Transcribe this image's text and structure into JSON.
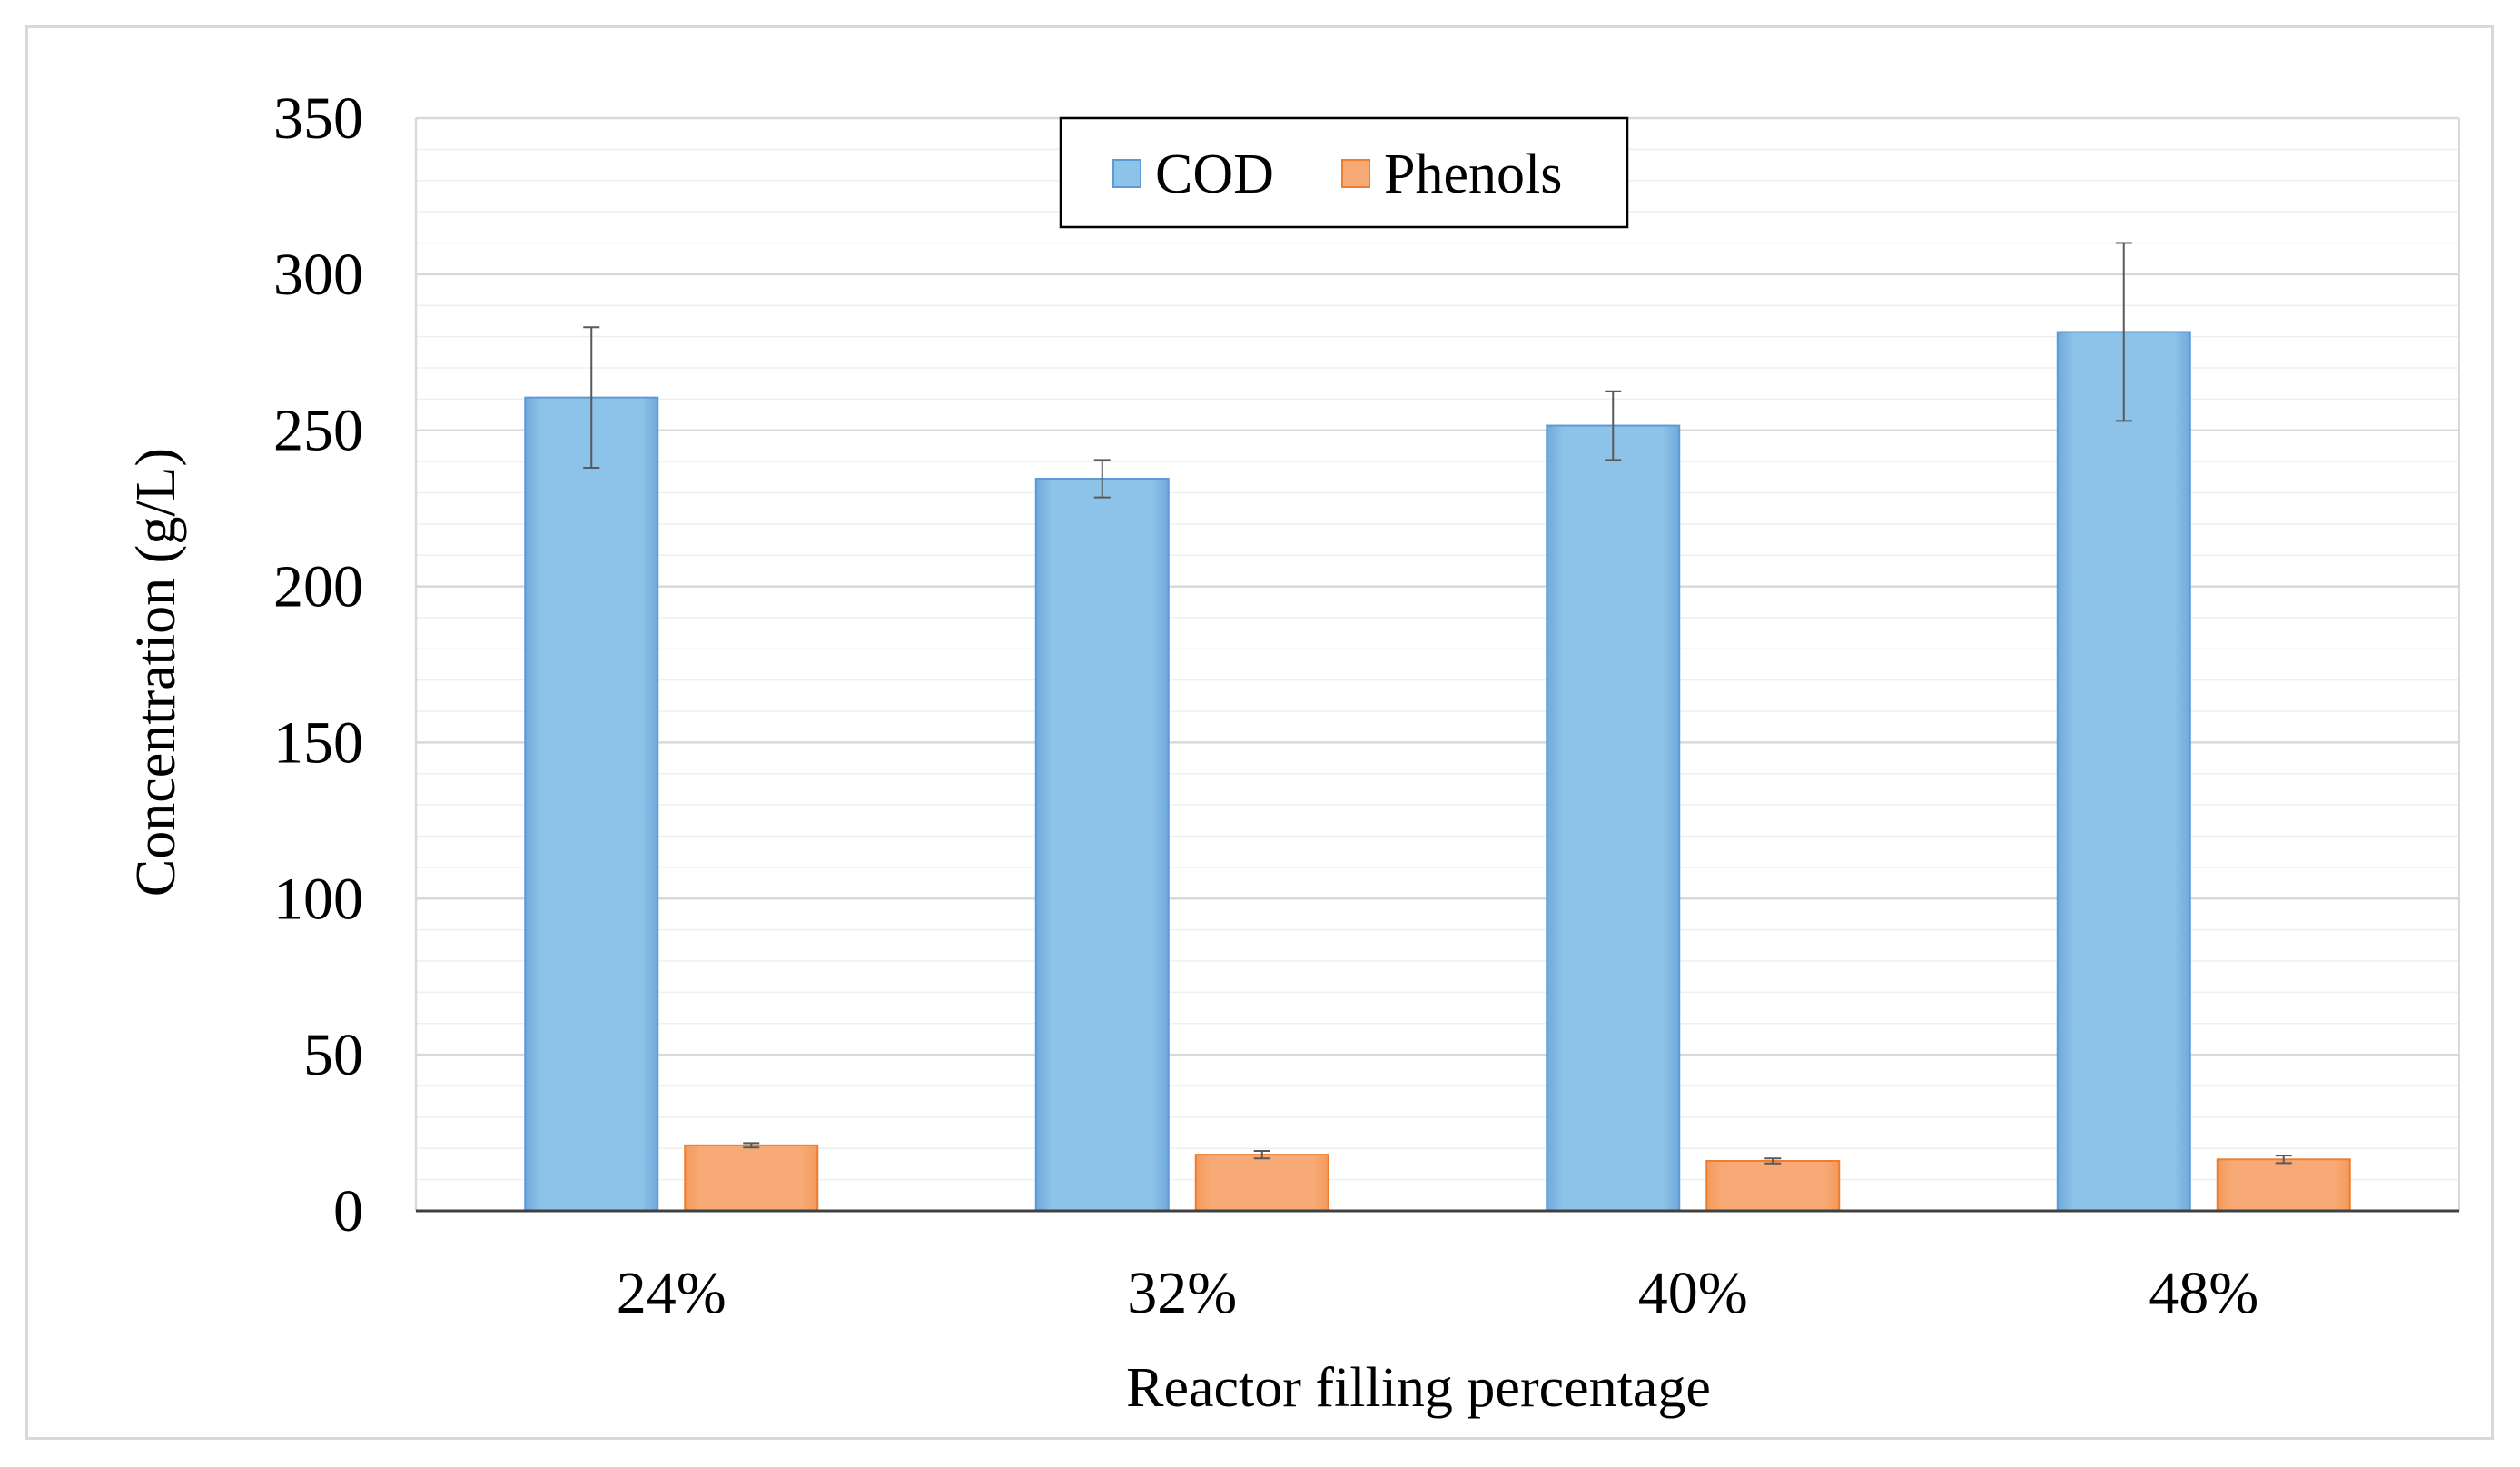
{
  "chart_data": {
    "type": "bar",
    "title": "",
    "xlabel": "Reactor filling percentage",
    "ylabel": "Concentration (g/L)",
    "ylim": [
      0,
      350
    ],
    "yticks": [
      0,
      50,
      100,
      150,
      200,
      250,
      300,
      350
    ],
    "ytick_labels": [
      "0",
      "50",
      "100",
      "150",
      "200",
      "250",
      "300",
      "350"
    ],
    "minor_grid_step": 10,
    "grid": true,
    "legend_position": "top-center",
    "categories": [
      "24%",
      "32%",
      "40%",
      "48%"
    ],
    "series": [
      {
        "name": "COD",
        "color": "#8dc3e8",
        "edge_color": "#5b9bd5",
        "values": [
          260.5,
          234.5,
          251.5,
          281.5
        ],
        "errors": [
          22.5,
          6,
          11,
          28.5
        ]
      },
      {
        "name": "Phenols",
        "color": "#f8aa76",
        "edge_color": "#ed7d31",
        "values": [
          21,
          18,
          16,
          16.5
        ],
        "errors": [
          0.7,
          1.2,
          0.8,
          1.2
        ]
      }
    ]
  }
}
